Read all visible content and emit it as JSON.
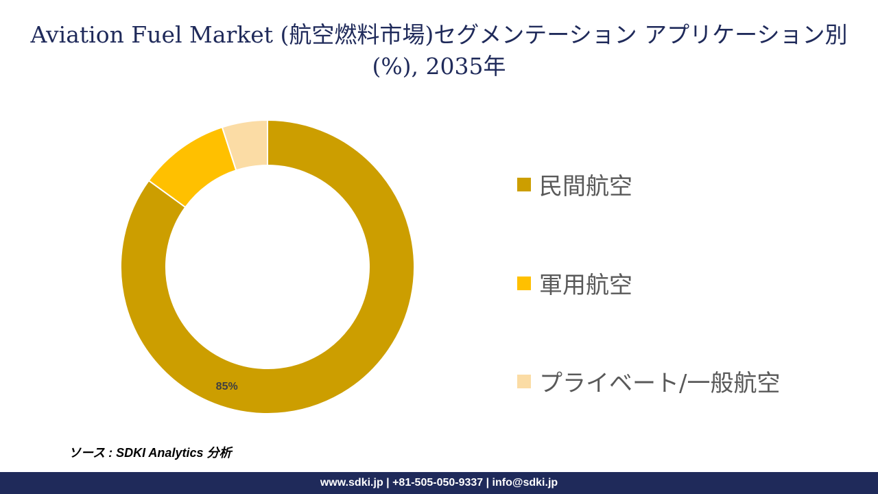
{
  "title": "Aviation Fuel Market (航空燃料市場)セグメンテーション アプリケーション別 (%), 2035年",
  "chart_data": {
    "type": "pie",
    "donut": true,
    "categories": [
      "民間航空",
      "軍用航空",
      "プライベート/一般航空"
    ],
    "values": [
      85,
      10,
      5
    ],
    "colors": [
      "#cc9e00",
      "#ffc000",
      "#fbdca5"
    ],
    "data_labels": [
      "85%",
      "",
      ""
    ],
    "legend_position": "right"
  },
  "source": "ソース : SDKI Analytics 分析",
  "footer": "www.sdki.jp | +81-505-050-9337 | info@sdki.jp"
}
